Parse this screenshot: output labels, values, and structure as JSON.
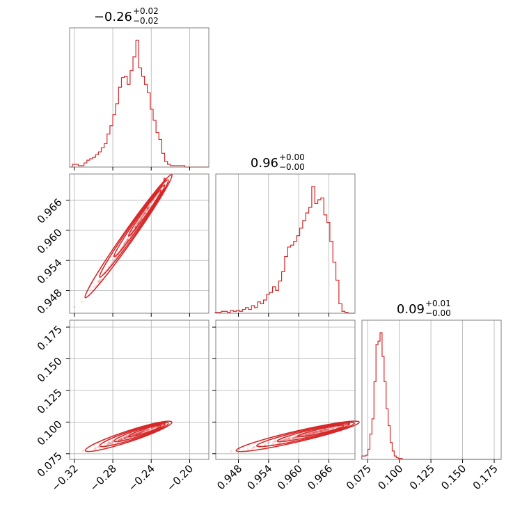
{
  "chart_data": {
    "type": "corner",
    "parameters": [
      {
        "median": "−0.26",
        "plus": "+0.02",
        "minus": "−0.02",
        "range": [
          -0.325,
          -0.18
        ],
        "ticks": [
          -0.32,
          -0.28,
          -0.24,
          -0.2
        ],
        "tick_labels": [
          "−0.32",
          "−0.28",
          "−0.24",
          "−0.20"
        ],
        "hist": {
          "bins": [
            -0.3235,
            -0.3205,
            -0.3175,
            -0.3145,
            -0.3115,
            -0.3085,
            -0.3055,
            -0.3025,
            -0.2995,
            -0.2965,
            -0.2935,
            -0.2905,
            -0.2875,
            -0.2845,
            -0.2815,
            -0.2785,
            -0.2755,
            -0.2725,
            -0.2695,
            -0.2665,
            -0.2635,
            -0.2605,
            -0.2575,
            -0.2545,
            -0.2515,
            -0.2485,
            -0.2455,
            -0.2425,
            -0.2395,
            -0.2365,
            -0.2335,
            -0.2305,
            -0.2275,
            -0.2245,
            -0.2215,
            -0.2185,
            -0.2155,
            -0.2125,
            -0.2095,
            -0.2065,
            -0.2035,
            -0.2005,
            -0.1975,
            -0.1945,
            -0.1915,
            -0.1885,
            -0.1855,
            -0.1825
          ],
          "counts": [
            0,
            2,
            2,
            1,
            1,
            3,
            5,
            6,
            7,
            9,
            11,
            14,
            17,
            24,
            30,
            38,
            46,
            58,
            65,
            66,
            60,
            70,
            80,
            92,
            72,
            66,
            60,
            54,
            42,
            34,
            25,
            20,
            10,
            4,
            2,
            1,
            1,
            1,
            1,
            1,
            0,
            0,
            0,
            0,
            0,
            0,
            0,
            0
          ]
        }
      },
      {
        "median": "0.96",
        "plus": "+0.00",
        "minus": "−0.00",
        "range": [
          0.9435,
          0.9712
        ],
        "ticks": [
          0.948,
          0.954,
          0.96,
          0.966
        ],
        "tick_labels": [
          "0.948",
          "0.954",
          "0.960",
          "0.966"
        ],
        "hist": {
          "bins": [
            0.9437,
            0.9443,
            0.9449,
            0.9455,
            0.9461,
            0.9467,
            0.9473,
            0.9479,
            0.9485,
            0.9491,
            0.9497,
            0.9503,
            0.9509,
            0.9515,
            0.9521,
            0.9527,
            0.9533,
            0.9539,
            0.9545,
            0.9551,
            0.9557,
            0.9563,
            0.9569,
            0.9575,
            0.9581,
            0.9587,
            0.9593,
            0.9599,
            0.9605,
            0.9611,
            0.9617,
            0.9623,
            0.9629,
            0.9635,
            0.9641,
            0.9647,
            0.9653,
            0.9659,
            0.9665,
            0.9671,
            0.9677,
            0.9683,
            0.9689,
            0.9695,
            0.9701,
            0.9707
          ],
          "counts": [
            1,
            1,
            2,
            2,
            1,
            3,
            2,
            3,
            2,
            4,
            6,
            4,
            8,
            6,
            12,
            10,
            14,
            20,
            22,
            28,
            24,
            34,
            44,
            60,
            70,
            72,
            76,
            82,
            90,
            98,
            106,
            112,
            134,
            116,
            120,
            122,
            104,
            96,
            76,
            54,
            35,
            10,
            2,
            1,
            0,
            0
          ]
        }
      },
      {
        "median": "0.09",
        "plus": "+0.01",
        "minus": "−0.00",
        "range": [
          0.0705,
          0.1805
        ],
        "ticks": [
          0.075,
          0.1,
          0.125,
          0.15,
          0.175
        ],
        "tick_labels": [
          "0.075",
          "0.100",
          "0.125",
          "0.150",
          "0.175"
        ],
        "hist": {
          "bins": [
            0.0712,
            0.0728,
            0.0744,
            0.076,
            0.0776,
            0.0792,
            0.0808,
            0.0824,
            0.084,
            0.0856,
            0.0872,
            0.0888,
            0.0904,
            0.092,
            0.0936,
            0.0952,
            0.0968,
            0.0984,
            0.1,
            0.1016,
            0.1032,
            0.1048,
            0.1064,
            0.108
          ],
          "counts": [
            4,
            4,
            5,
            12,
            30,
            48,
            92,
            136,
            140,
            150,
            122,
            92,
            60,
            40,
            20,
            10,
            4,
            2,
            1,
            1,
            0,
            0,
            0,
            0
          ]
        }
      }
    ],
    "color": "#d62728",
    "grid": true,
    "scatter_opacity": 0.25
  }
}
